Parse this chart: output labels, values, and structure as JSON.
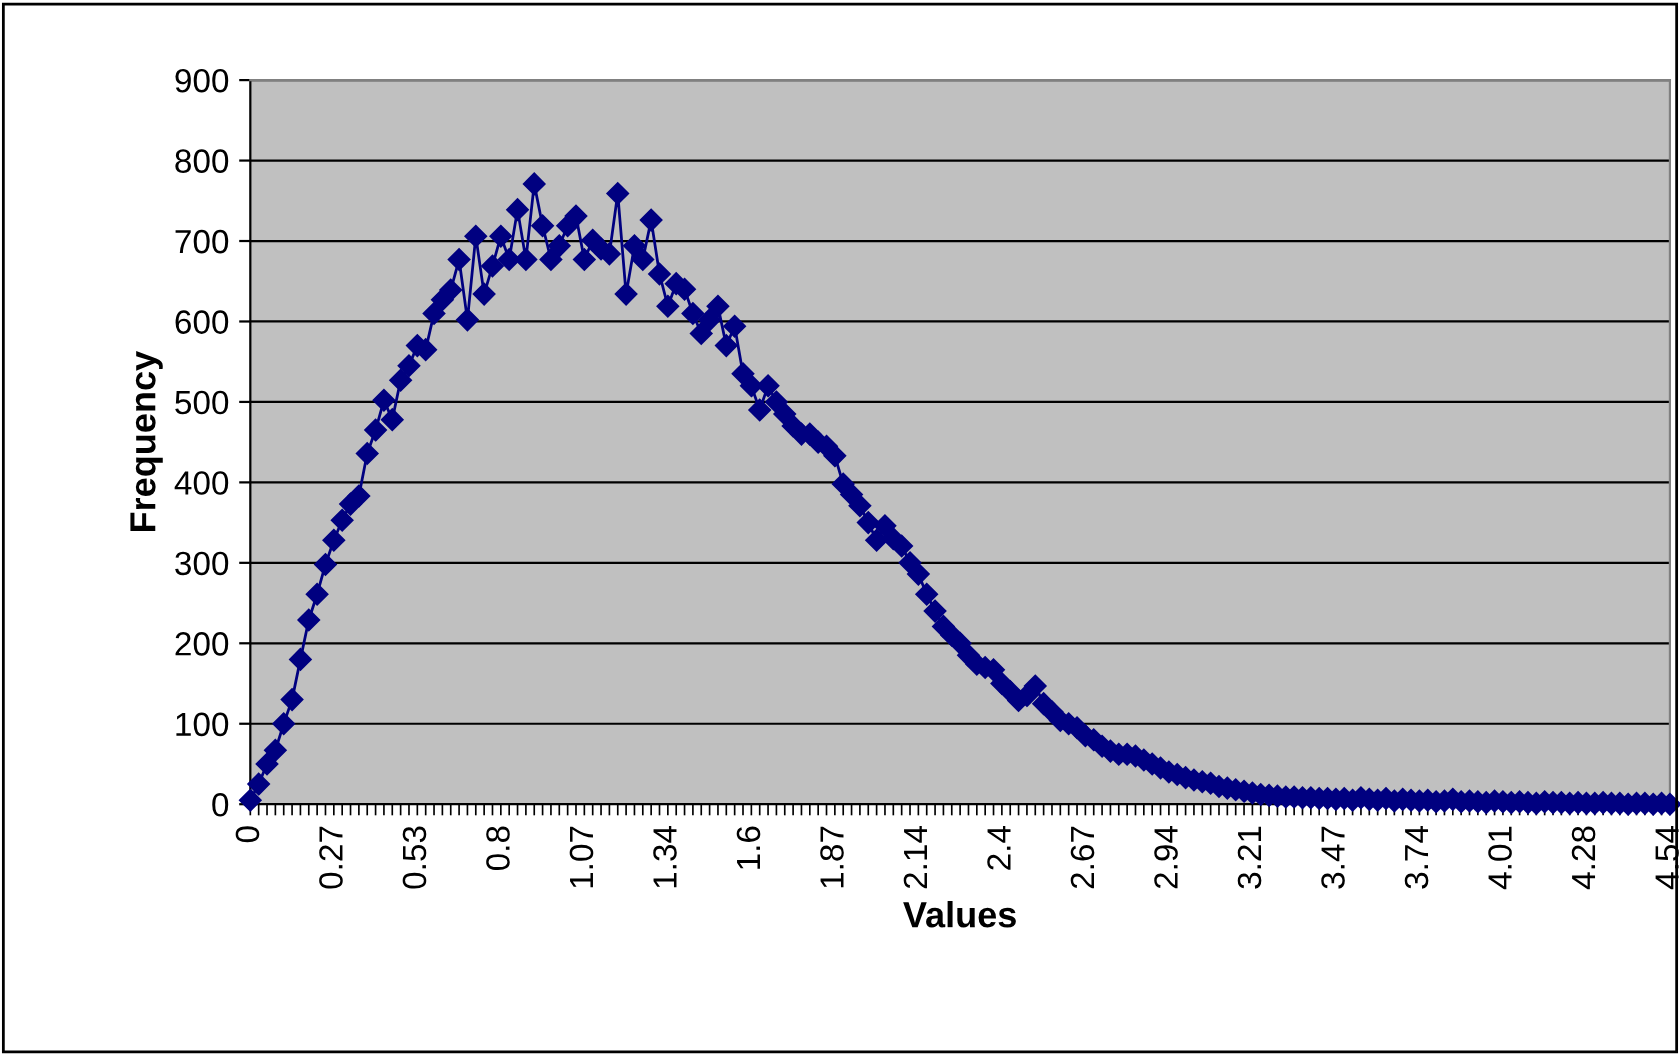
{
  "chart_data": {
    "type": "line",
    "xlabel": "Values",
    "ylabel": "Frequency",
    "categories": [
      "0",
      null,
      null,
      null,
      null,
      null,
      null,
      null,
      null,
      null,
      "0.27",
      null,
      null,
      null,
      null,
      null,
      null,
      null,
      null,
      null,
      "0.53",
      null,
      null,
      null,
      null,
      null,
      null,
      null,
      null,
      null,
      "0.8",
      null,
      null,
      null,
      null,
      null,
      null,
      null,
      null,
      null,
      "1.07",
      null,
      null,
      null,
      null,
      null,
      null,
      null,
      null,
      null,
      "1.34",
      null,
      null,
      null,
      null,
      null,
      null,
      null,
      null,
      null,
      "1.6",
      null,
      null,
      null,
      null,
      null,
      null,
      null,
      null,
      null,
      "1.87",
      null,
      null,
      null,
      null,
      null,
      null,
      null,
      null,
      null,
      "2.14",
      null,
      null,
      null,
      null,
      null,
      null,
      null,
      null,
      null,
      "2.4",
      null,
      null,
      null,
      null,
      null,
      null,
      null,
      null,
      null,
      "2.67",
      null,
      null,
      null,
      null,
      null,
      null,
      null,
      null,
      null,
      "2.94",
      null,
      null,
      null,
      null,
      null,
      null,
      null,
      null,
      null,
      "3.21",
      null,
      null,
      null,
      null,
      null,
      null,
      null,
      null,
      null,
      "3.47",
      null,
      null,
      null,
      null,
      null,
      null,
      null,
      null,
      null,
      "3.74",
      null,
      null,
      null,
      null,
      null,
      null,
      null,
      null,
      null,
      "4.01",
      null,
      null,
      null,
      null,
      null,
      null,
      null,
      null,
      null,
      "4.28",
      null,
      null,
      null,
      null,
      null,
      null,
      null,
      null,
      null,
      "4.54"
    ],
    "series": [
      {
        "color": "#000080",
        "values": [
          5,
          25,
          50,
          67,
          100,
          130,
          180,
          229,
          261,
          298,
          328,
          353,
          373,
          383,
          436,
          465,
          502,
          478,
          527,
          545,
          570,
          565,
          610,
          627,
          639,
          677,
          602,
          706,
          634,
          669,
          706,
          677,
          739,
          677,
          771,
          719,
          677,
          694,
          719,
          731,
          677,
          701,
          690,
          684,
          759,
          634,
          694,
          677,
          726,
          659,
          619,
          647,
          640,
          610,
          585,
          602,
          619,
          570,
          594,
          535,
          520,
          490,
          520,
          500,
          485,
          470,
          460,
          460,
          450,
          445,
          433,
          398,
          385,
          371,
          350,
          328,
          346,
          330,
          321,
          300,
          286,
          261,
          240,
          221,
          210,
          200,
          185,
          174,
          170,
          167,
          150,
          140,
          129,
          135,
          147,
          125,
          115,
          104,
          100,
          95,
          85,
          80,
          72,
          66,
          62,
          62,
          60,
          55,
          50,
          45,
          40,
          37,
          33,
          30,
          28,
          26,
          22,
          20,
          18,
          16,
          14,
          12,
          11,
          10,
          9,
          9,
          8,
          8,
          7,
          7,
          6,
          7,
          5,
          8,
          6,
          5,
          7,
          4,
          6,
          5,
          4,
          5,
          3,
          4,
          6,
          3,
          4,
          3,
          2,
          4,
          3,
          2,
          3,
          2,
          1,
          3,
          2,
          2,
          1,
          2,
          1,
          1,
          2,
          1,
          1,
          0,
          1,
          1,
          0,
          1,
          0
        ]
      }
    ],
    "ylim": [
      0,
      900
    ],
    "yticks": [
      0,
      100,
      200,
      300,
      400,
      500,
      600,
      700,
      800,
      900
    ],
    "grid": "y",
    "marker": "diamond",
    "line_style": "solid",
    "legend": false
  }
}
